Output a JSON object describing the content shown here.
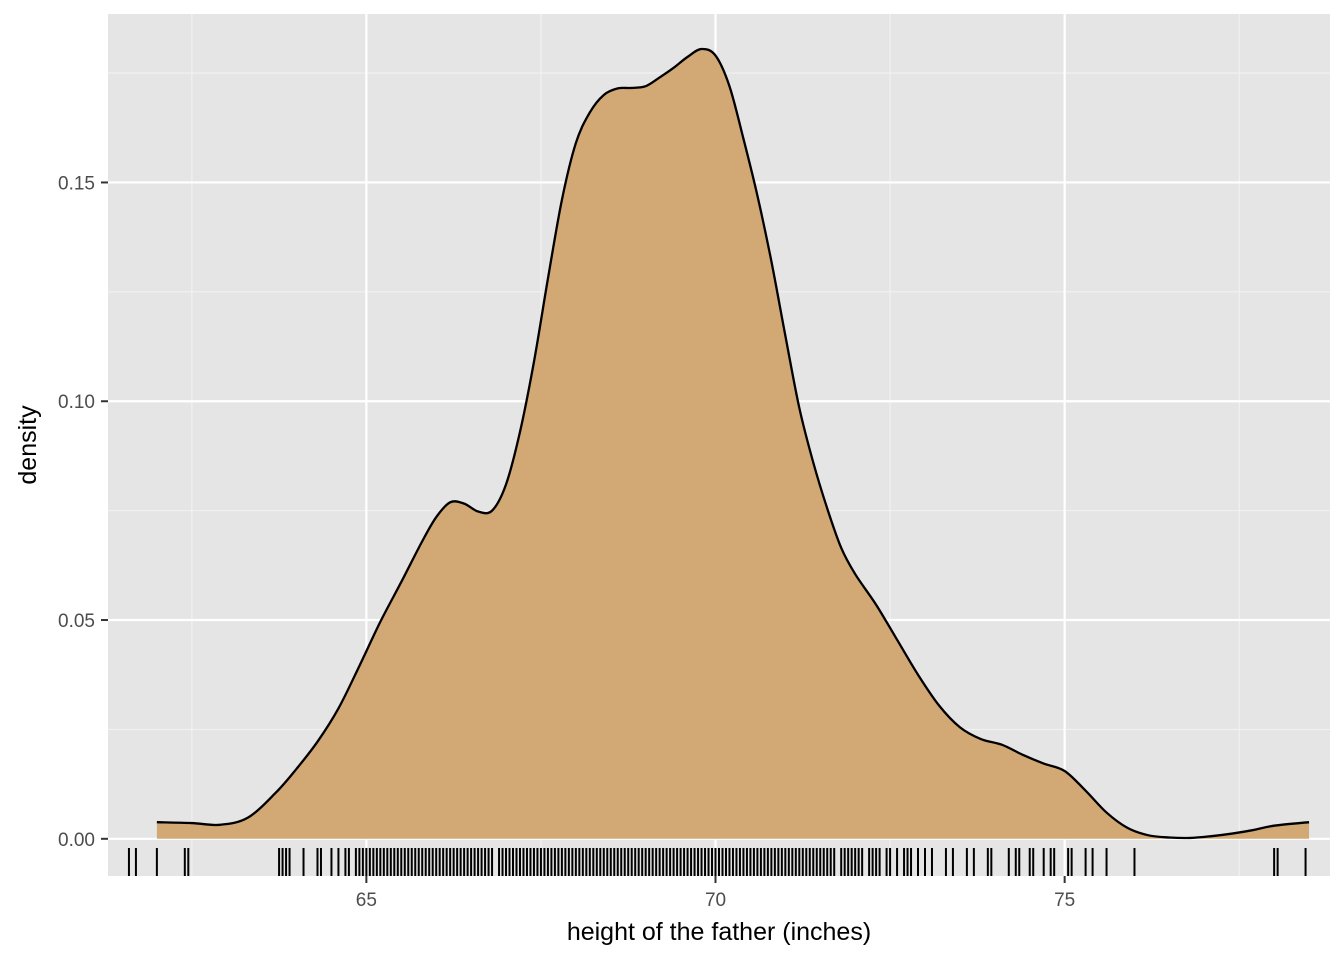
{
  "chart_data": {
    "type": "area",
    "title": "",
    "xlabel": "height of the father (inches)",
    "ylabel": "density",
    "xlim": [
      61.3,
      78.8
    ],
    "ylim": [
      -0.0085,
      0.1885
    ],
    "x_ticks": [
      65,
      70,
      75
    ],
    "x_tick_labels": [
      "65",
      "70",
      "75"
    ],
    "y_ticks": [
      0.0,
      0.05,
      0.1,
      0.15
    ],
    "y_tick_labels": [
      "0.00",
      "0.05",
      "0.10",
      "0.15"
    ],
    "grid": true,
    "legend": "none",
    "fill_color": "#D2A874",
    "line_color": "#000000",
    "panel_background": "#E5E5E5",
    "density": {
      "x": [
        62.0,
        62.5,
        62.9,
        63.3,
        63.7,
        64.0,
        64.3,
        64.6,
        64.9,
        65.2,
        65.5,
        65.8,
        66.0,
        66.2,
        66.4,
        66.6,
        66.8,
        67.0,
        67.2,
        67.4,
        67.6,
        67.8,
        68.0,
        68.2,
        68.4,
        68.6,
        68.8,
        69.0,
        69.2,
        69.4,
        69.6,
        69.8,
        70.0,
        70.2,
        70.4,
        70.6,
        70.8,
        71.0,
        71.2,
        71.4,
        71.6,
        71.8,
        72.0,
        72.3,
        72.6,
        72.9,
        73.2,
        73.5,
        73.8,
        74.1,
        74.4,
        74.7,
        75.0,
        75.3,
        75.6,
        75.9,
        76.2,
        76.5,
        76.8,
        77.1,
        77.4,
        77.7,
        78.0,
        78.5
      ],
      "y": [
        0.0038,
        0.0036,
        0.0032,
        0.0048,
        0.0105,
        0.016,
        0.0222,
        0.0298,
        0.0395,
        0.0496,
        0.0587,
        0.068,
        0.0735,
        0.0769,
        0.0766,
        0.0748,
        0.075,
        0.081,
        0.093,
        0.109,
        0.128,
        0.146,
        0.159,
        0.166,
        0.17,
        0.1715,
        0.1716,
        0.172,
        0.174,
        0.1762,
        0.1787,
        0.1805,
        0.179,
        0.172,
        0.16,
        0.147,
        0.132,
        0.115,
        0.0985,
        0.086,
        0.0755,
        0.0665,
        0.0605,
        0.0535,
        0.0455,
        0.0375,
        0.0305,
        0.0255,
        0.0228,
        0.0215,
        0.0192,
        0.0172,
        0.0155,
        0.011,
        0.006,
        0.0025,
        0.0008,
        0.0003,
        0.0002,
        0.0006,
        0.0012,
        0.002,
        0.003,
        0.0038
      ]
    },
    "rug_x": [
      61.6,
      61.7,
      62.0,
      62.4,
      62.45,
      63.75,
      63.8,
      63.85,
      63.9,
      64.1,
      64.3,
      64.35,
      64.5,
      64.6,
      64.7,
      64.75,
      64.85,
      64.9,
      64.95,
      65.0,
      65.05,
      65.1,
      65.15,
      65.2,
      65.25,
      65.3,
      65.35,
      65.4,
      65.45,
      65.5,
      65.55,
      65.6,
      65.65,
      65.7,
      65.75,
      65.8,
      65.85,
      65.9,
      65.95,
      66.0,
      66.05,
      66.1,
      66.15,
      66.2,
      66.25,
      66.3,
      66.35,
      66.4,
      66.45,
      66.5,
      66.55,
      66.6,
      66.65,
      66.7,
      66.75,
      66.8,
      66.9,
      66.95,
      67.0,
      67.05,
      67.1,
      67.15,
      67.2,
      67.25,
      67.3,
      67.35,
      67.4,
      67.45,
      67.5,
      67.55,
      67.6,
      67.65,
      67.7,
      67.75,
      67.8,
      67.85,
      67.9,
      67.95,
      68.0,
      68.05,
      68.1,
      68.15,
      68.2,
      68.25,
      68.3,
      68.35,
      68.4,
      68.45,
      68.5,
      68.55,
      68.6,
      68.65,
      68.7,
      68.75,
      68.8,
      68.85,
      68.9,
      68.95,
      69.0,
      69.05,
      69.1,
      69.15,
      69.2,
      69.25,
      69.3,
      69.35,
      69.4,
      69.45,
      69.5,
      69.55,
      69.6,
      69.65,
      69.7,
      69.75,
      69.8,
      69.85,
      69.9,
      69.95,
      70.0,
      70.05,
      70.1,
      70.15,
      70.2,
      70.25,
      70.3,
      70.35,
      70.4,
      70.45,
      70.5,
      70.55,
      70.6,
      70.65,
      70.7,
      70.75,
      70.8,
      70.85,
      70.9,
      70.95,
      71.0,
      71.05,
      71.1,
      71.15,
      71.2,
      71.25,
      71.3,
      71.35,
      71.4,
      71.45,
      71.5,
      71.55,
      71.6,
      71.65,
      71.7,
      71.8,
      71.85,
      71.9,
      71.95,
      72.0,
      72.05,
      72.1,
      72.2,
      72.25,
      72.3,
      72.35,
      72.45,
      72.5,
      72.6,
      72.7,
      72.75,
      72.8,
      72.9,
      73.0,
      73.1,
      73.3,
      73.4,
      73.6,
      73.7,
      73.9,
      73.95,
      74.2,
      74.3,
      74.35,
      74.5,
      74.55,
      74.7,
      74.8,
      74.85,
      75.05,
      75.1,
      75.3,
      75.4,
      75.6,
      76.0,
      78.0,
      78.05,
      78.45
    ]
  }
}
